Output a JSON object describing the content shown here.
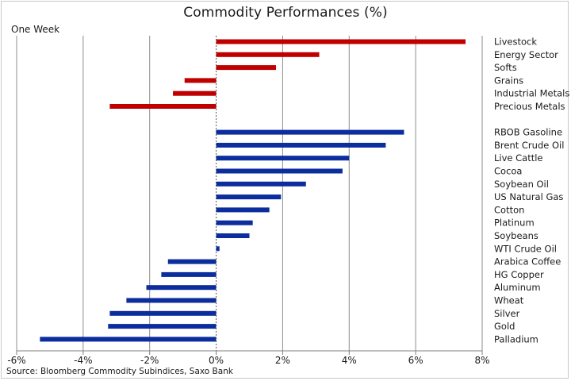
{
  "chart_data": {
    "type": "bar",
    "orientation": "horizontal",
    "title": "Commodity Performances (%)",
    "subtitle": "One Week",
    "source": "Source: Bloomberg Commodity Subindices, Saxo Bank",
    "xlim": [
      -6,
      8
    ],
    "xticks": [
      -6,
      -4,
      -2,
      0,
      2,
      4,
      6,
      8
    ],
    "xtick_labels": [
      "-6%",
      "-4%",
      "-2%",
      "0%",
      "2%",
      "4%",
      "6%",
      "8%"
    ],
    "grid": true,
    "groups": [
      {
        "color": "#c00000",
        "categories": [
          "Livestock",
          "Energy Sector",
          "Softs",
          "Grains",
          "Industrial Metals",
          "Precious Metals"
        ],
        "values": [
          7.5,
          3.1,
          1.8,
          -0.95,
          -1.3,
          -3.2
        ]
      },
      {
        "color": "#0b2d9e",
        "categories": [
          "RBOB Gasoline",
          "Brent Crude Oil",
          "Live Cattle",
          "Cocoa",
          "Soybean Oil",
          "US Natural Gas",
          "Cotton",
          "Platinum",
          "Soybeans",
          "WTI Crude Oil",
          "Arabica Coffee",
          "HG Copper",
          "Aluminum",
          "Wheat",
          "Silver",
          "Gold",
          "Palladium"
        ],
        "values": [
          5.65,
          5.1,
          4.0,
          3.8,
          2.7,
          1.95,
          1.6,
          1.1,
          1.0,
          0.1,
          -1.45,
          -1.65,
          -2.1,
          -2.7,
          -3.2,
          -3.25,
          -5.3
        ]
      }
    ]
  }
}
